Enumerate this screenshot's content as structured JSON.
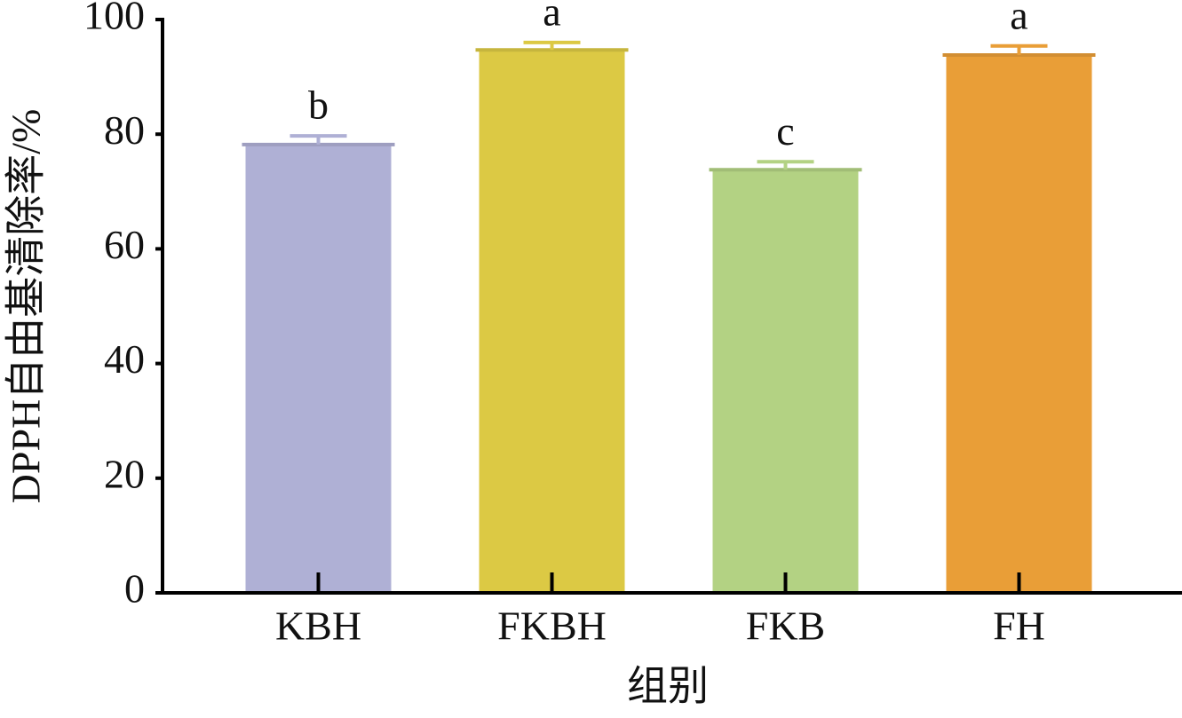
{
  "chart_data": {
    "type": "bar",
    "y_label": "DPPH自由基清除率/%",
    "x_label": "组别",
    "categories": [
      "KBH",
      "FKBH",
      "FKB",
      "FH"
    ],
    "values": [
      78.2,
      94.7,
      73.8,
      93.8
    ],
    "errors": [
      1.5,
      1.3,
      1.4,
      1.6
    ],
    "letters": [
      "b",
      "a",
      "c",
      "a"
    ],
    "colors": [
      "#afb0d5",
      "#dcc944",
      "#b3d283",
      "#e99e37"
    ],
    "ylim": [
      0,
      100
    ],
    "yticks": [
      0,
      20,
      40,
      60,
      80,
      100
    ],
    "grid": false
  }
}
